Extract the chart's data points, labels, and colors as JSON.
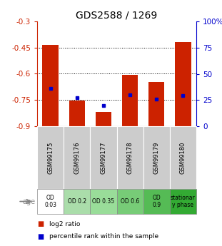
{
  "title": "GDS2588 / 1269",
  "samples": [
    "GSM99175",
    "GSM99176",
    "GSM99177",
    "GSM99178",
    "GSM99179",
    "GSM99180"
  ],
  "log2_ratio": [
    -0.435,
    -0.755,
    -0.82,
    -0.605,
    -0.645,
    -0.42
  ],
  "percentile_rank": [
    36,
    27,
    20,
    30,
    26,
    29
  ],
  "ylim_left": [
    -0.9,
    -0.3
  ],
  "yticks_left": [
    -0.9,
    -0.75,
    -0.6,
    -0.45,
    -0.3
  ],
  "ylim_right": [
    0,
    100
  ],
  "yticks_right": [
    0,
    25,
    50,
    75,
    100
  ],
  "ytick_labels_right": [
    "0",
    "25",
    "50",
    "75",
    "100%"
  ],
  "bar_color": "#cc2200",
  "marker_color": "#0000cc",
  "age_labels": [
    "OD\n0.03",
    "OD 0.2",
    "OD 0.35",
    "OD 0.6",
    "OD\n0.9",
    "stationar\ny phase"
  ],
  "age_bg_colors": [
    "#ffffff",
    "#aaddaa",
    "#99dd99",
    "#77cc77",
    "#55bb55",
    "#33aa33"
  ],
  "sample_bg_color": "#cccccc",
  "legend_red_label": "log2 ratio",
  "legend_blue_label": "percentile rank within the sample",
  "title_color": "#000000",
  "left_axis_color": "#cc2200",
  "right_axis_color": "#0000cc",
  "gridline_yticks": [
    -0.45,
    -0.6,
    -0.75
  ]
}
